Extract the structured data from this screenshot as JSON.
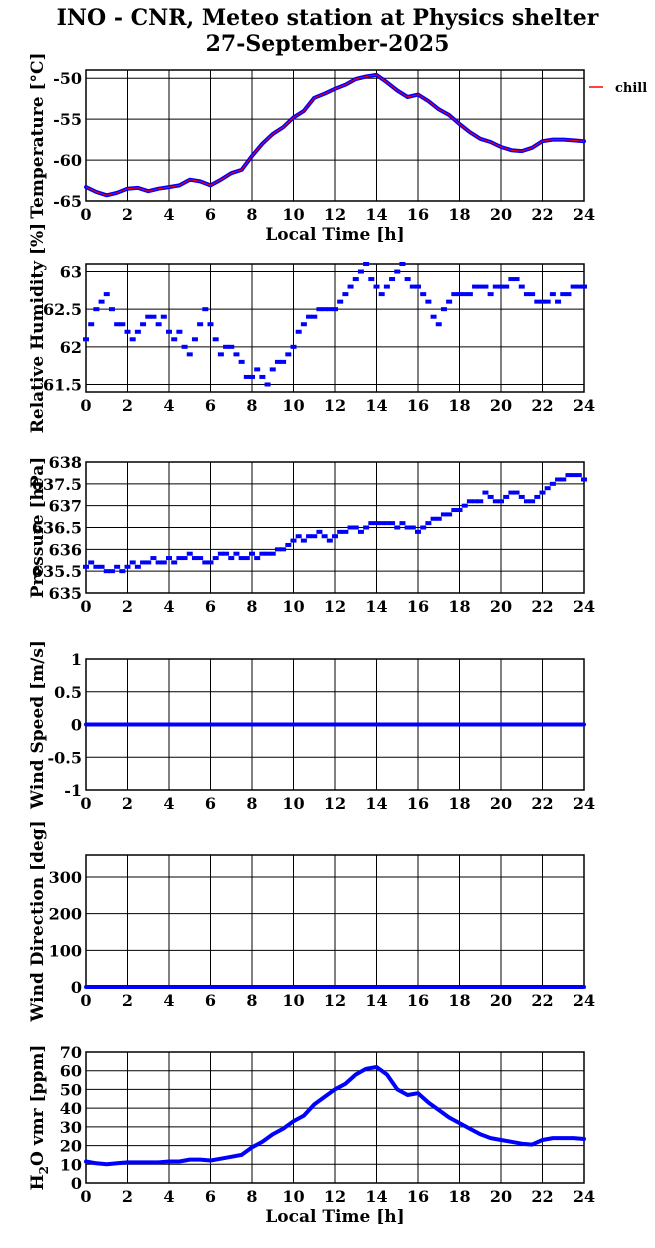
{
  "title_line1": "INO - CNR, Meteo station at Physics shelter",
  "title_line2": "27-September-2025",
  "colors": {
    "series": "#0000ff",
    "chill": "#ff0000",
    "grid": "#000000"
  },
  "chart_data": [
    {
      "type": "line",
      "ylabel": "Temperature [°C]",
      "xlabel": "Local Time [h]",
      "xlim": [
        0,
        24
      ],
      "ylim": [
        -65,
        -49
      ],
      "yticks": [
        -65,
        -60,
        -55,
        -50
      ],
      "ytick_labels": [
        "-65",
        "-60",
        "-55",
        "-50"
      ],
      "xticks": [
        0,
        2,
        4,
        6,
        8,
        10,
        12,
        14,
        16,
        18,
        20,
        22,
        24
      ],
      "xtick_labels": [
        "0",
        "2",
        "4",
        "6",
        "8",
        "10",
        "12",
        "14",
        "16",
        "18",
        "20",
        "22",
        "24"
      ],
      "legend": {
        "label": "chill",
        "position": "right"
      },
      "series": [
        {
          "x": [
            0,
            0.5,
            1,
            1.5,
            2,
            2.5,
            3,
            3.5,
            4,
            4.5,
            5,
            5.5,
            6,
            6.5,
            7,
            7.5,
            8,
            8.5,
            9,
            9.5,
            10,
            10.5,
            11,
            11.5,
            12,
            12.5,
            13,
            13.5,
            14,
            14.5,
            15,
            15.5,
            16,
            16.5,
            17,
            17.5,
            18,
            18.5,
            19,
            19.5,
            20,
            20.5,
            21,
            21.5,
            22,
            22.5,
            23,
            23.5,
            24
          ],
          "y": [
            -63.3,
            -63.9,
            -64.3,
            -64,
            -63.5,
            -63.4,
            -63.8,
            -63.5,
            -63.3,
            -63.1,
            -62.4,
            -62.6,
            -63.1,
            -62.4,
            -61.6,
            -61.2,
            -59.5,
            -58,
            -56.8,
            -56,
            -54.8,
            -54,
            -52.4,
            -51.9,
            -51.3,
            -50.8,
            -50.1,
            -49.8,
            -49.6,
            -50.5,
            -51.5,
            -52.3,
            -52,
            -52.8,
            -53.8,
            -54.5,
            -55.6,
            -56.6,
            -57.4,
            -57.8,
            -58.4,
            -58.8,
            -58.9,
            -58.5,
            -57.7,
            -57.5,
            -57.5,
            -57.6,
            -57.7
          ]
        }
      ]
    },
    {
      "type": "scatter",
      "ylabel": "Relative Humidity [%]",
      "xlim": [
        0,
        24
      ],
      "ylim": [
        61.4,
        63.1
      ],
      "yticks": [
        61.5,
        62,
        62.5,
        63
      ],
      "ytick_labels": [
        "61.5",
        "62",
        "62.5",
        "63"
      ],
      "xticks": [
        0,
        2,
        4,
        6,
        8,
        10,
        12,
        14,
        16,
        18,
        20,
        22,
        24
      ],
      "xtick_labels": [
        "0",
        "2",
        "4",
        "6",
        "8",
        "10",
        "12",
        "14",
        "16",
        "18",
        "20",
        "22",
        "24"
      ],
      "series": [
        {
          "x": [
            0,
            0.25,
            0.5,
            0.75,
            1,
            1.25,
            1.5,
            1.75,
            2,
            2.25,
            2.5,
            2.75,
            3,
            3.25,
            3.5,
            3.75,
            4,
            4.25,
            4.5,
            4.75,
            5,
            5.25,
            5.5,
            5.75,
            6,
            6.25,
            6.5,
            6.75,
            7,
            7.25,
            7.5,
            7.75,
            8,
            8.25,
            8.5,
            8.75,
            9,
            9.25,
            9.5,
            9.75,
            10,
            10.25,
            10.5,
            10.75,
            11,
            11.25,
            11.5,
            11.75,
            12,
            12.25,
            12.5,
            12.75,
            13,
            13.25,
            13.5,
            13.75,
            14,
            14.25,
            14.5,
            14.75,
            15,
            15.25,
            15.5,
            15.75,
            16,
            16.25,
            16.5,
            16.75,
            17,
            17.25,
            17.5,
            17.75,
            18,
            18.25,
            18.5,
            18.75,
            19,
            19.25,
            19.5,
            19.75,
            20,
            20.25,
            20.5,
            20.75,
            21,
            21.25,
            21.5,
            21.75,
            22,
            22.25,
            22.5,
            22.75,
            23,
            23.25,
            23.5,
            23.75,
            24
          ],
          "y": [
            62.1,
            62.3,
            62.5,
            62.6,
            62.7,
            62.5,
            62.3,
            62.3,
            62.2,
            62.1,
            62.2,
            62.3,
            62.4,
            62.4,
            62.3,
            62.4,
            62.2,
            62.1,
            62.2,
            62.0,
            61.9,
            62.1,
            62.3,
            62.5,
            62.3,
            62.1,
            61.9,
            62.0,
            62.0,
            61.9,
            61.8,
            61.6,
            61.6,
            61.7,
            61.6,
            61.5,
            61.7,
            61.8,
            61.8,
            61.9,
            62.0,
            62.2,
            62.3,
            62.4,
            62.4,
            62.5,
            62.5,
            62.5,
            62.5,
            62.6,
            62.7,
            62.8,
            62.9,
            63.0,
            63.1,
            62.9,
            62.8,
            62.7,
            62.8,
            62.9,
            63.0,
            63.1,
            62.9,
            62.8,
            62.8,
            62.7,
            62.6,
            62.4,
            62.3,
            62.5,
            62.6,
            62.7,
            62.7,
            62.7,
            62.7,
            62.8,
            62.8,
            62.8,
            62.7,
            62.8,
            62.8,
            62.8,
            62.9,
            62.9,
            62.8,
            62.7,
            62.7,
            62.6,
            62.6,
            62.6,
            62.7,
            62.6,
            62.7,
            62.7,
            62.8,
            62.8,
            62.8
          ]
        }
      ]
    },
    {
      "type": "scatter",
      "ylabel": "Pressure [hPa]",
      "xlim": [
        0,
        24
      ],
      "ylim": [
        635,
        638
      ],
      "yticks": [
        635,
        635.5,
        636,
        636.5,
        637,
        637.5,
        638
      ],
      "ytick_labels": [
        "635",
        "635.5",
        "636",
        "636.5",
        "637",
        "637.5",
        "638"
      ],
      "xticks": [
        0,
        2,
        4,
        6,
        8,
        10,
        12,
        14,
        16,
        18,
        20,
        22,
        24
      ],
      "xtick_labels": [
        "0",
        "2",
        "4",
        "6",
        "8",
        "10",
        "12",
        "14",
        "16",
        "18",
        "20",
        "22",
        "24"
      ],
      "series": [
        {
          "x": [
            0,
            0.25,
            0.5,
            0.75,
            1,
            1.25,
            1.5,
            1.75,
            2,
            2.25,
            2.5,
            2.75,
            3,
            3.25,
            3.5,
            3.75,
            4,
            4.25,
            4.5,
            4.75,
            5,
            5.25,
            5.5,
            5.75,
            6,
            6.25,
            6.5,
            6.75,
            7,
            7.25,
            7.5,
            7.75,
            8,
            8.25,
            8.5,
            8.75,
            9,
            9.25,
            9.5,
            9.75,
            10,
            10.25,
            10.5,
            10.75,
            11,
            11.25,
            11.5,
            11.75,
            12,
            12.25,
            12.5,
            12.75,
            13,
            13.25,
            13.5,
            13.75,
            14,
            14.25,
            14.5,
            14.75,
            15,
            15.25,
            15.5,
            15.75,
            16,
            16.25,
            16.5,
            16.75,
            17,
            17.25,
            17.5,
            17.75,
            18,
            18.25,
            18.5,
            18.75,
            19,
            19.25,
            19.5,
            19.75,
            20,
            20.25,
            20.5,
            20.75,
            21,
            21.25,
            21.5,
            21.75,
            22,
            22.25,
            22.5,
            22.75,
            23,
            23.25,
            23.5,
            23.75,
            24
          ],
          "y": [
            635.6,
            635.7,
            635.6,
            635.6,
            635.5,
            635.5,
            635.6,
            635.5,
            635.6,
            635.7,
            635.6,
            635.7,
            635.7,
            635.8,
            635.7,
            635.7,
            635.8,
            635.7,
            635.8,
            635.8,
            635.9,
            635.8,
            635.8,
            635.7,
            635.7,
            635.8,
            635.9,
            635.9,
            635.8,
            635.9,
            635.8,
            635.8,
            635.9,
            635.8,
            635.9,
            635.9,
            635.9,
            636.0,
            636.0,
            636.1,
            636.2,
            636.3,
            636.2,
            636.3,
            636.3,
            636.4,
            636.3,
            636.2,
            636.3,
            636.4,
            636.4,
            636.5,
            636.5,
            636.4,
            636.5,
            636.6,
            636.6,
            636.6,
            636.6,
            636.6,
            636.5,
            636.6,
            636.5,
            636.5,
            636.4,
            636.5,
            636.6,
            636.7,
            636.7,
            636.8,
            636.8,
            636.9,
            636.9,
            637.0,
            637.1,
            637.1,
            637.1,
            637.3,
            637.2,
            637.1,
            637.1,
            637.2,
            637.3,
            637.3,
            637.2,
            637.1,
            637.1,
            637.2,
            637.3,
            637.4,
            637.5,
            637.6,
            637.6,
            637.7,
            637.7,
            637.7,
            637.6
          ]
        }
      ]
    },
    {
      "type": "line",
      "ylabel": "Wind Speed [m/s]",
      "xlim": [
        0,
        24
      ],
      "ylim": [
        -1,
        1
      ],
      "yticks": [
        -1,
        -0.5,
        0,
        0.5,
        1
      ],
      "ytick_labels": [
        "-1",
        "-0.5",
        "0",
        "0.5",
        "1"
      ],
      "xticks": [
        0,
        2,
        4,
        6,
        8,
        10,
        12,
        14,
        16,
        18,
        20,
        22,
        24
      ],
      "xtick_labels": [
        "0",
        "2",
        "4",
        "6",
        "8",
        "10",
        "12",
        "14",
        "16",
        "18",
        "20",
        "22",
        "24"
      ],
      "series": [
        {
          "x": [
            0,
            24
          ],
          "y": [
            0,
            0
          ]
        }
      ]
    },
    {
      "type": "line",
      "ylabel": "Wind Direction [deg]",
      "xlim": [
        0,
        24
      ],
      "ylim": [
        0,
        360
      ],
      "yticks": [
        0,
        100,
        200,
        300
      ],
      "ytick_labels": [
        "0",
        "100",
        "200",
        "300"
      ],
      "xticks": [
        0,
        2,
        4,
        6,
        8,
        10,
        12,
        14,
        16,
        18,
        20,
        22,
        24
      ],
      "xtick_labels": [
        "0",
        "2",
        "4",
        "6",
        "8",
        "10",
        "12",
        "14",
        "16",
        "18",
        "20",
        "22",
        "24"
      ],
      "series": [
        {
          "x": [
            0,
            24
          ],
          "y": [
            0,
            0
          ]
        }
      ]
    },
    {
      "type": "line",
      "ylabel": "H2O vmr [ppm]",
      "xlabel": "Local Time [h]",
      "xlim": [
        0,
        24
      ],
      "ylim": [
        0,
        70
      ],
      "yticks": [
        0,
        10,
        20,
        30,
        40,
        50,
        60,
        70
      ],
      "ytick_labels": [
        "0",
        "10",
        "20",
        "30",
        "40",
        "50",
        "60",
        "70"
      ],
      "xticks": [
        0,
        2,
        4,
        6,
        8,
        10,
        12,
        14,
        16,
        18,
        20,
        22,
        24
      ],
      "xtick_labels": [
        "0",
        "2",
        "4",
        "6",
        "8",
        "10",
        "12",
        "14",
        "16",
        "18",
        "20",
        "22",
        "24"
      ],
      "series": [
        {
          "x": [
            0,
            0.5,
            1,
            1.5,
            2,
            2.5,
            3,
            3.5,
            4,
            4.5,
            5,
            5.5,
            6,
            6.5,
            7,
            7.5,
            8,
            8.5,
            9,
            9.5,
            10,
            10.5,
            11,
            11.5,
            12,
            12.5,
            13,
            13.5,
            14,
            14.5,
            15,
            15.5,
            16,
            16.5,
            17,
            17.5,
            18,
            18.5,
            19,
            19.5,
            20,
            20.5,
            21,
            21.5,
            22,
            22.5,
            23,
            23.5,
            24
          ],
          "y": [
            11.5,
            10.5,
            10,
            10.5,
            11,
            11,
            11,
            11,
            11.5,
            11.5,
            12.5,
            12.5,
            12,
            13,
            14,
            15,
            19,
            22,
            26,
            29,
            33,
            36,
            42,
            46,
            50,
            53,
            58,
            61,
            62,
            58,
            50,
            47,
            48,
            43,
            39,
            35,
            32,
            29,
            26,
            24,
            23,
            22,
            21,
            20.5,
            23,
            24,
            24,
            24,
            23.5
          ]
        }
      ]
    }
  ]
}
